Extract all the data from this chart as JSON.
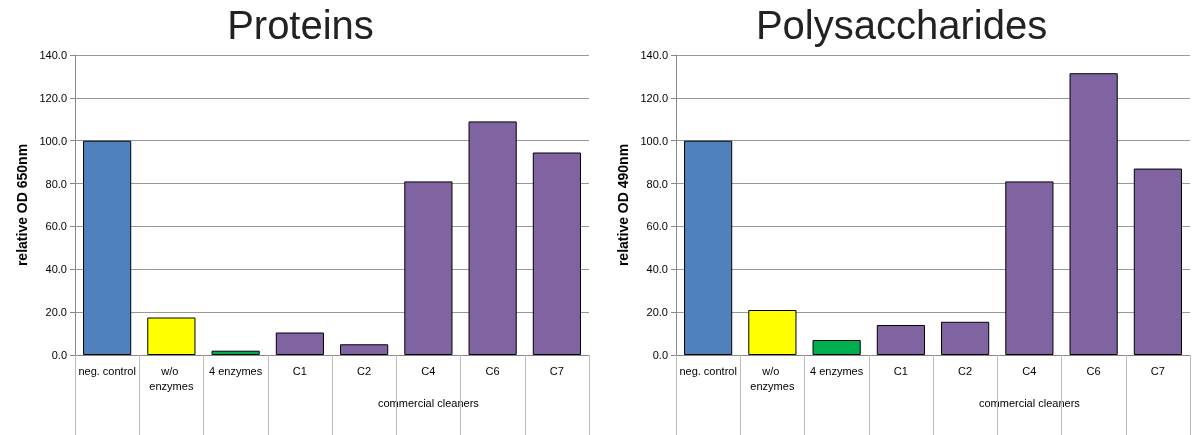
{
  "chart_data": [
    {
      "type": "bar",
      "title": "Proteins",
      "ylabel": "relative OD 650nm",
      "categories": [
        "neg. control",
        "w/o enzymes",
        "4 enzymes",
        "C1",
        "C2",
        "C4",
        "C6",
        "C7"
      ],
      "values": [
        100,
        17.5,
        2,
        10.5,
        5,
        81,
        109,
        94.5
      ],
      "colors": [
        "#4f81bd",
        "#ffff00",
        "#00b050",
        "#8064a2",
        "#8064a2",
        "#8064a2",
        "#8064a2",
        "#8064a2"
      ],
      "ylim": [
        0,
        140
      ],
      "yticks": [
        {
          "value": 0,
          "label": "0.0"
        },
        {
          "value": 20,
          "label": "20.0"
        },
        {
          "value": 40,
          "label": "40.0"
        },
        {
          "value": 60,
          "label": "60.0"
        },
        {
          "value": 80,
          "label": "80.0"
        },
        {
          "value": 100,
          "label": "100.0"
        },
        {
          "value": 120,
          "label": "120.0"
        },
        {
          "value": 140,
          "label": "140.0"
        }
      ],
      "grid": "y",
      "annotations": [
        "commercial cleaners"
      ]
    },
    {
      "type": "bar",
      "title": "Polysaccharides",
      "ylabel": "relative OD 490nm",
      "categories": [
        "neg. control",
        "w/o enzymes",
        "4 enzymes",
        "C1",
        "C2",
        "C4",
        "C6",
        "C7"
      ],
      "values": [
        100,
        21,
        7,
        14,
        15.5,
        81,
        131.5,
        87
      ],
      "colors": [
        "#4f81bd",
        "#ffff00",
        "#00b050",
        "#8064a2",
        "#8064a2",
        "#8064a2",
        "#8064a2",
        "#8064a2"
      ],
      "ylim": [
        0,
        140
      ],
      "yticks": [
        {
          "value": 0,
          "label": "0.0"
        },
        {
          "value": 20,
          "label": "20.0"
        },
        {
          "value": 40,
          "label": "40.0"
        },
        {
          "value": 60,
          "label": "60.0"
        },
        {
          "value": 80,
          "label": "80.0"
        },
        {
          "value": 100,
          "label": "100.0"
        },
        {
          "value": 120,
          "label": "120.0"
        },
        {
          "value": 140,
          "label": "140.0"
        }
      ],
      "grid": "y",
      "annotations": [
        "commercial cleaners"
      ]
    }
  ]
}
